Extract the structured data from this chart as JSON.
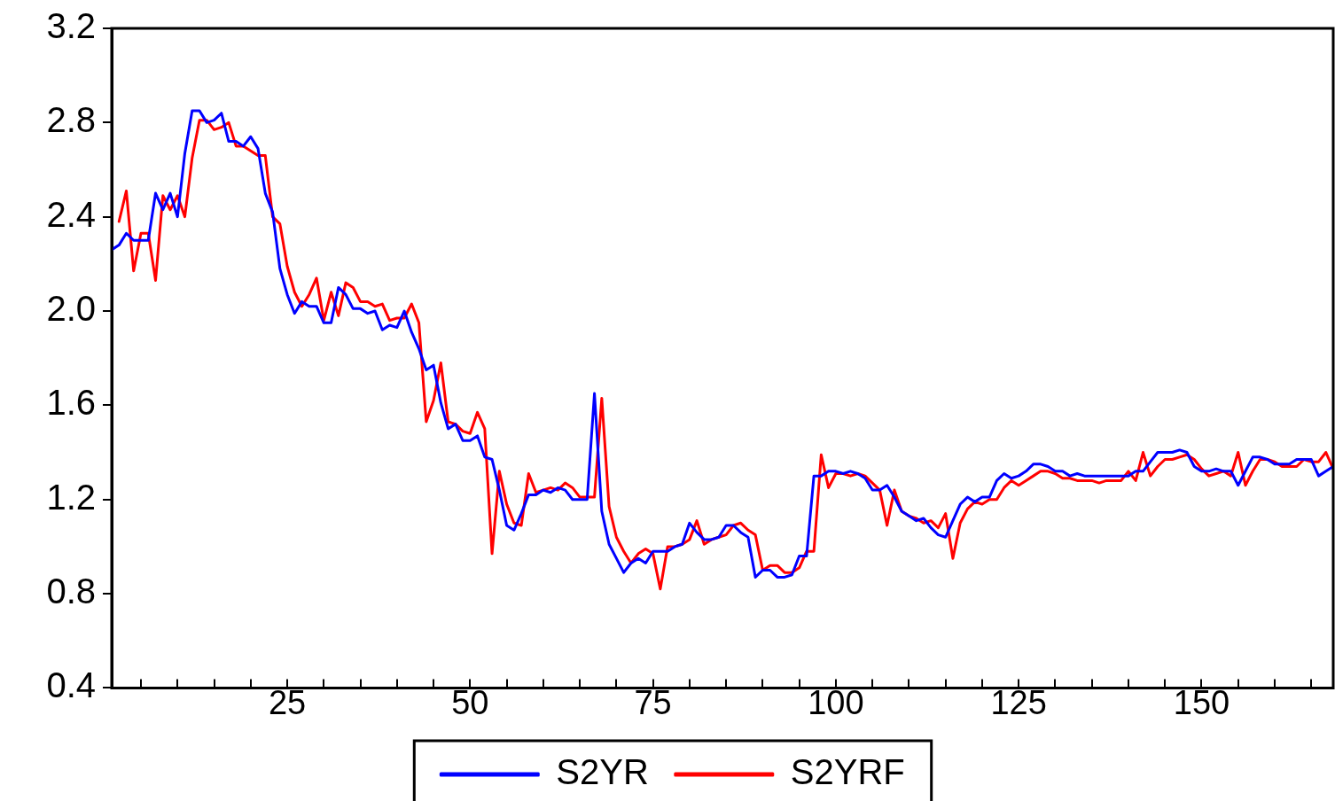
{
  "chart_data": {
    "type": "line",
    "x": [
      1,
      2,
      3,
      4,
      5,
      6,
      7,
      8,
      9,
      10,
      11,
      12,
      13,
      14,
      15,
      16,
      17,
      18,
      19,
      20,
      21,
      22,
      23,
      24,
      25,
      26,
      27,
      28,
      29,
      30,
      31,
      32,
      33,
      34,
      35,
      36,
      37,
      38,
      39,
      40,
      41,
      42,
      43,
      44,
      45,
      46,
      47,
      48,
      49,
      50,
      51,
      52,
      53,
      54,
      55,
      56,
      57,
      58,
      59,
      60,
      61,
      62,
      63,
      64,
      65,
      66,
      67,
      68,
      69,
      70,
      71,
      72,
      73,
      74,
      75,
      76,
      77,
      78,
      79,
      80,
      81,
      82,
      83,
      84,
      85,
      86,
      87,
      88,
      89,
      90,
      91,
      92,
      93,
      94,
      95,
      96,
      97,
      98,
      99,
      100,
      101,
      102,
      103,
      104,
      105,
      106,
      107,
      108,
      109,
      110,
      111,
      112,
      113,
      114,
      115,
      116,
      117,
      118,
      119,
      120,
      121,
      122,
      123,
      124,
      125,
      126,
      127,
      128,
      129,
      130,
      131,
      132,
      133,
      134,
      135,
      136,
      137,
      138,
      139,
      140,
      141,
      142,
      143,
      144,
      145,
      146,
      147,
      148,
      149,
      150,
      151,
      152,
      153,
      154,
      155,
      156,
      157,
      158,
      159,
      160,
      161,
      162,
      163,
      164,
      165,
      166,
      167,
      168
    ],
    "series": [
      {
        "name": "S2YR",
        "color": "#0000ff",
        "values": [
          2.26,
          2.28,
          2.33,
          2.3,
          2.3,
          2.3,
          2.5,
          2.43,
          2.5,
          2.4,
          2.67,
          2.85,
          2.85,
          2.8,
          2.81,
          2.84,
          2.72,
          2.72,
          2.7,
          2.74,
          2.69,
          2.5,
          2.42,
          2.18,
          2.07,
          1.99,
          2.04,
          2.02,
          2.02,
          1.95,
          1.95,
          2.1,
          2.07,
          2.01,
          2.01,
          1.99,
          2.0,
          1.92,
          1.94,
          1.93,
          2.0,
          1.91,
          1.84,
          1.75,
          1.77,
          1.61,
          1.5,
          1.52,
          1.45,
          1.45,
          1.47,
          1.38,
          1.37,
          1.24,
          1.09,
          1.07,
          1.14,
          1.22,
          1.22,
          1.24,
          1.23,
          1.25,
          1.24,
          1.2,
          1.2,
          1.2,
          1.65,
          1.15,
          1.01,
          0.95,
          0.89,
          0.93,
          0.95,
          0.93,
          0.98,
          0.98,
          0.98,
          1.0,
          1.01,
          1.1,
          1.06,
          1.03,
          1.03,
          1.04,
          1.09,
          1.09,
          1.06,
          1.04,
          0.87,
          0.9,
          0.9,
          0.87,
          0.87,
          0.88,
          0.96,
          0.96,
          1.3,
          1.3,
          1.32,
          1.32,
          1.31,
          1.32,
          1.31,
          1.29,
          1.24,
          1.24,
          1.26,
          1.21,
          1.15,
          1.13,
          1.11,
          1.12,
          1.08,
          1.05,
          1.04,
          1.11,
          1.18,
          1.21,
          1.19,
          1.21,
          1.21,
          1.28,
          1.31,
          1.29,
          1.3,
          1.32,
          1.35,
          1.35,
          1.34,
          1.32,
          1.32,
          1.3,
          1.31,
          1.3,
          1.3,
          1.3,
          1.3,
          1.3,
          1.3,
          1.3,
          1.32,
          1.32,
          1.36,
          1.4,
          1.4,
          1.4,
          1.41,
          1.4,
          1.34,
          1.32,
          1.32,
          1.33,
          1.32,
          1.32,
          1.26,
          1.32,
          1.38,
          1.38,
          1.37,
          1.35,
          1.35,
          1.35,
          1.37,
          1.37,
          1.37,
          1.3,
          1.32,
          1.34
        ]
      },
      {
        "name": "S2YRF",
        "color": "#ff0000",
        "values": [
          null,
          2.38,
          2.51,
          2.17,
          2.33,
          2.33,
          2.13,
          2.49,
          2.43,
          2.49,
          2.4,
          2.65,
          2.81,
          2.81,
          2.77,
          2.78,
          2.8,
          2.7,
          2.7,
          2.68,
          2.66,
          2.66,
          2.4,
          2.37,
          2.19,
          2.08,
          2.02,
          2.07,
          2.14,
          1.96,
          2.08,
          1.98,
          2.12,
          2.1,
          2.04,
          2.04,
          2.02,
          2.03,
          1.96,
          1.97,
          1.97,
          2.03,
          1.95,
          1.53,
          1.62,
          1.78,
          1.53,
          1.52,
          1.49,
          1.48,
          1.57,
          1.5,
          0.97,
          1.32,
          1.18,
          1.1,
          1.09,
          1.31,
          1.23,
          1.24,
          1.25,
          1.24,
          1.27,
          1.25,
          1.21,
          1.21,
          1.21,
          1.63,
          1.17,
          1.04,
          0.98,
          0.93,
          0.97,
          0.99,
          0.97,
          0.82,
          1.0,
          1.0,
          1.01,
          1.03,
          1.11,
          1.01,
          1.03,
          1.04,
          1.05,
          1.09,
          1.1,
          1.07,
          1.05,
          0.9,
          0.92,
          0.92,
          0.89,
          0.89,
          0.91,
          0.98,
          0.98,
          1.39,
          1.25,
          1.31,
          1.31,
          1.3,
          1.31,
          1.3,
          1.27,
          1.24,
          1.09,
          1.24,
          1.15,
          1.13,
          1.12,
          1.1,
          1.11,
          1.08,
          1.14,
          0.95,
          1.1,
          1.16,
          1.19,
          1.18,
          1.2,
          1.2,
          1.25,
          1.28,
          1.26,
          1.28,
          1.3,
          1.32,
          1.32,
          1.31,
          1.29,
          1.29,
          1.28,
          1.28,
          1.28,
          1.27,
          1.28,
          1.28,
          1.28,
          1.32,
          1.28,
          1.4,
          1.3,
          1.34,
          1.37,
          1.37,
          1.38,
          1.39,
          1.37,
          1.33,
          1.3,
          1.31,
          1.32,
          1.3,
          1.4,
          1.26,
          1.32,
          1.37,
          1.37,
          1.36,
          1.34,
          1.34,
          1.34,
          1.37,
          1.36,
          1.36,
          1.4,
          1.33
        ]
      }
    ],
    "xlim": [
      1,
      168
    ],
    "xticks": [
      {
        "value": 5,
        "label": null
      },
      {
        "value": 10,
        "label": null
      },
      {
        "value": 15,
        "label": null
      },
      {
        "value": 20,
        "label": null
      },
      25,
      {
        "value": 30,
        "label": null
      },
      {
        "value": 35,
        "label": null
      },
      {
        "value": 40,
        "label": null
      },
      {
        "value": 45,
        "label": null
      },
      50,
      {
        "value": 55,
        "label": null
      },
      {
        "value": 60,
        "label": null
      },
      {
        "value": 65,
        "label": null
      },
      {
        "value": 70,
        "label": null
      },
      75,
      {
        "value": 80,
        "label": null
      },
      {
        "value": 85,
        "label": null
      },
      {
        "value": 90,
        "label": null
      },
      {
        "value": 95,
        "label": null
      },
      100,
      {
        "value": 105,
        "label": null
      },
      {
        "value": 110,
        "label": null
      },
      {
        "value": 115,
        "label": null
      },
      {
        "value": 120,
        "label": null
      },
      125,
      {
        "value": 130,
        "label": null
      },
      {
        "value": 135,
        "label": null
      },
      {
        "value": 140,
        "label": null
      },
      {
        "value": 145,
        "label": null
      },
      150,
      {
        "value": 155,
        "label": null
      },
      {
        "value": 160,
        "label": null
      },
      {
        "value": 165,
        "label": null
      }
    ],
    "ylim": [
      0.4,
      3.2
    ],
    "yticks": [
      0.4,
      0.8,
      1.2,
      1.6,
      {
        "value": 2,
        "label": "2.0"
      },
      2.4,
      2.8,
      3.2
    ],
    "grid": false,
    "legend": "bottom",
    "marker": "none",
    "line_style": "solid"
  }
}
